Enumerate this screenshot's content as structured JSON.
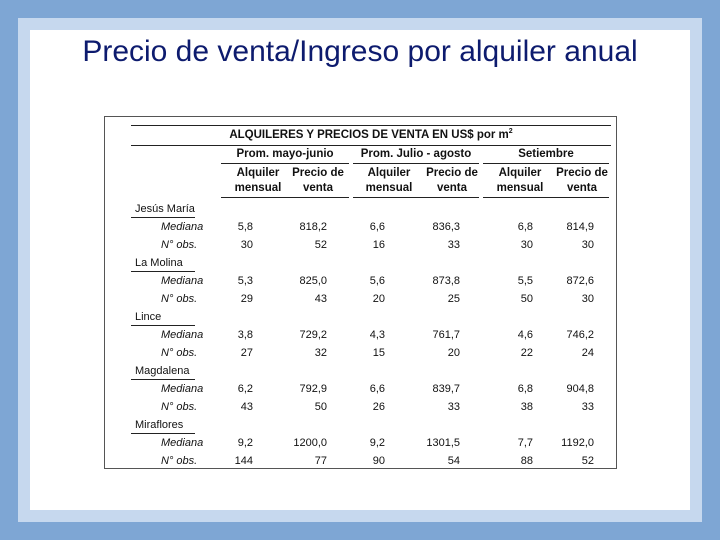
{
  "slide": {
    "title": "Precio de venta/Ingreso por alquiler anual"
  },
  "table": {
    "caption": "ALQUILERES Y PRECIOS DE VENTA EN US$ por m",
    "caption_sup": "2",
    "periods": [
      "Prom. mayo-junio",
      "Prom. Julio - agosto",
      "Setiembre"
    ],
    "subheaders": [
      [
        "Alquiler",
        "mensual"
      ],
      [
        "Precio de",
        "venta"
      ],
      [
        "Alquiler",
        "mensual"
      ],
      [
        "Precio de",
        "venta"
      ],
      [
        "Alquiler",
        "mensual"
      ],
      [
        "Precio de",
        "venta"
      ]
    ],
    "districts": [
      {
        "name": "Jesús María",
        "rows": [
          {
            "label": "Mediana",
            "values": [
              "5,8",
              "818,2",
              "6,6",
              "836,3",
              "6,8",
              "814,9"
            ]
          },
          {
            "label": "N° obs.",
            "values": [
              "30",
              "52",
              "16",
              "33",
              "30",
              "30"
            ]
          }
        ]
      },
      {
        "name": "La Molina",
        "rows": [
          {
            "label": "Mediana",
            "values": [
              "5,3",
              "825,0",
              "5,6",
              "873,8",
              "5,5",
              "872,6"
            ]
          },
          {
            "label": "N° obs.",
            "values": [
              "29",
              "43",
              "20",
              "25",
              "50",
              "30"
            ]
          }
        ]
      },
      {
        "name": "Lince",
        "rows": [
          {
            "label": "Mediana",
            "values": [
              "3,8",
              "729,2",
              "4,3",
              "761,7",
              "4,6",
              "746,2"
            ]
          },
          {
            "label": "N° obs.",
            "values": [
              "27",
              "32",
              "15",
              "20",
              "22",
              "24"
            ]
          }
        ]
      },
      {
        "name": "Magdalena",
        "rows": [
          {
            "label": "Mediana",
            "values": [
              "6,2",
              "792,9",
              "6,6",
              "839,7",
              "6,8",
              "904,8"
            ]
          },
          {
            "label": "N° obs.",
            "values": [
              "43",
              "50",
              "26",
              "33",
              "38",
              "33"
            ]
          }
        ]
      },
      {
        "name": "Miraflores",
        "rows": [
          {
            "label": "Mediana",
            "values": [
              "9,2",
              "1200,0",
              "9,2",
              "1301,5",
              "7,7",
              "1192,0"
            ]
          },
          {
            "label": "N° obs.",
            "values": [
              "144",
              "77",
              "90",
              "54",
              "88",
              "52"
            ]
          }
        ]
      }
    ]
  }
}
